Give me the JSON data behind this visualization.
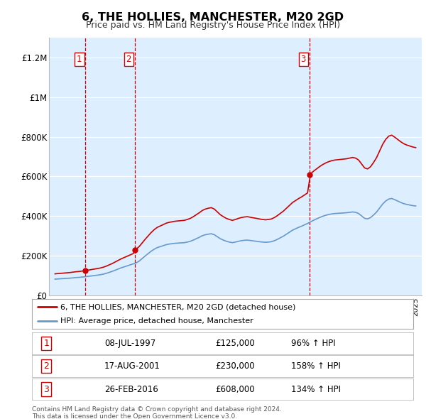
{
  "title": "6, THE HOLLIES, MANCHESTER, M20 2GD",
  "subtitle": "Price paid vs. HM Land Registry's House Price Index (HPI)",
  "legend_line1": "6, THE HOLLIES, MANCHESTER, M20 2GD (detached house)",
  "legend_line2": "HPI: Average price, detached house, Manchester",
  "footer1": "Contains HM Land Registry data © Crown copyright and database right 2024.",
  "footer2": "This data is licensed under the Open Government Licence v3.0.",
  "transactions": [
    {
      "num": "1",
      "date": "08-JUL-1997",
      "price": "£125,000",
      "pct": "96% ↑ HPI",
      "year": 1997.53
    },
    {
      "num": "2",
      "date": "17-AUG-2001",
      "price": "£230,000",
      "pct": "158% ↑ HPI",
      "year": 2001.63
    },
    {
      "num": "3",
      "date": "26-FEB-2016",
      "price": "£608,000",
      "pct": "134% ↑ HPI",
      "year": 2016.15
    }
  ],
  "prices": [
    125000,
    230000,
    608000
  ],
  "red_color": "#cc0000",
  "blue_color": "#6699cc",
  "background_color": "#ddeeff",
  "plot_bg": "#ffffff",
  "ylim": [
    0,
    1300000
  ],
  "xlim": [
    1994.5,
    2025.5
  ],
  "yticks": [
    0,
    200000,
    400000,
    600000,
    800000,
    1000000,
    1200000
  ],
  "ylabels": [
    "£0",
    "£200K",
    "£400K",
    "£600K",
    "£800K",
    "£1M",
    "£1.2M"
  ]
}
